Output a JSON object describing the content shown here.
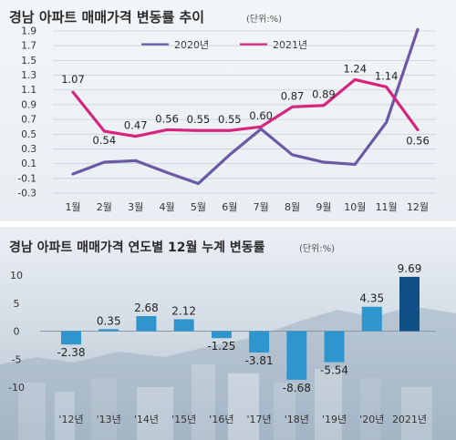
{
  "chart_data": [
    {
      "type": "line",
      "title": "경남 아파트 매매가격 변동률 추이",
      "unit": "(단위:%)",
      "categories": [
        "1월",
        "2월",
        "3월",
        "4월",
        "5월",
        "6월",
        "7월",
        "8월",
        "9월",
        "10월",
        "11월",
        "12월"
      ],
      "yticks": [
        "1.9",
        "1.7",
        "1.5",
        "1.3",
        "1.1",
        "0.9",
        "0.7",
        "0.5",
        "0.3",
        "0.1",
        "-0.1",
        "-0.3"
      ],
      "ylim": [
        -0.3,
        1.9
      ],
      "series": [
        {
          "name": "2020년",
          "color": "#6a5aa6",
          "values": [
            -0.04,
            0.12,
            0.14,
            -0.02,
            -0.17,
            0.22,
            0.57,
            0.22,
            0.12,
            0.09,
            0.66,
            1.92
          ],
          "labels": [
            "",
            "",
            "",
            "",
            "",
            "",
            "",
            "",
            "",
            "",
            "",
            ""
          ]
        },
        {
          "name": "2021년",
          "color": "#d6257f",
          "values": [
            1.07,
            0.54,
            0.47,
            0.56,
            0.55,
            0.55,
            0.6,
            0.87,
            0.89,
            1.24,
            1.14,
            0.56
          ],
          "labels": [
            "1.07",
            "0.54",
            "0.47",
            "0.56",
            "0.55",
            "0.55",
            "0.60",
            "0.87",
            "0.89",
            "1.24",
            "1.14",
            "0.56"
          ]
        }
      ]
    },
    {
      "type": "bar",
      "title": "경남 아파트 매매가격 연도별 12월 누계 변동률",
      "unit": "(단위:%)",
      "categories": [
        "'12년",
        "'13년",
        "'14년",
        "'15년",
        "'16년",
        "'17년",
        "'18년",
        "'19년",
        "'20년",
        "2021년"
      ],
      "values": [
        -2.38,
        0.35,
        2.68,
        2.12,
        -1.25,
        -3.81,
        -8.68,
        -5.54,
        4.35,
        9.69
      ],
      "labels": [
        "-2.38",
        "0.35",
        "2.68",
        "2.12",
        "-1.25",
        "-3.81",
        "-8.68",
        "-5.54",
        "4.35",
        "9.69"
      ],
      "yticks": [
        "10",
        "5",
        "0",
        "-5",
        "-10"
      ],
      "ylim": [
        -10,
        10
      ],
      "color": "#2f95cf",
      "highlight_color": "#0f4f86"
    }
  ]
}
